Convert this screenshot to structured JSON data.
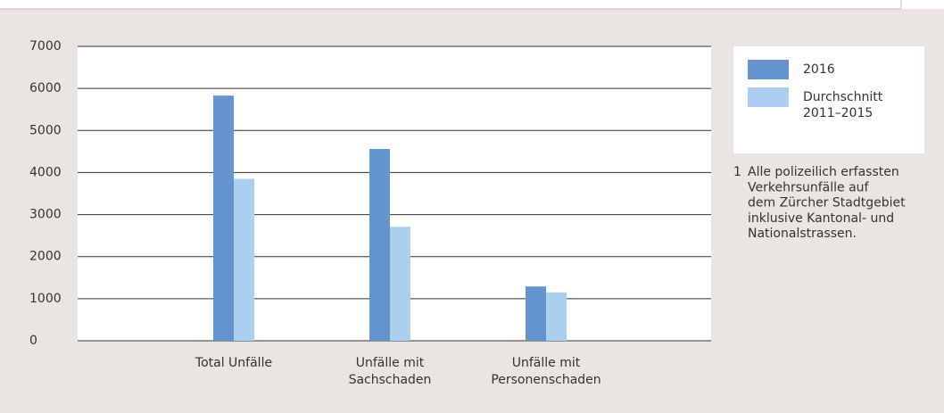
{
  "chart_data": {
    "type": "bar",
    "categories": [
      [
        "Total Unfälle"
      ],
      [
        "Unfälle mit",
        "Sachschaden"
      ],
      [
        "Unfälle mit",
        "Personenschaden"
      ]
    ],
    "series": [
      {
        "name": [
          "2016"
        ],
        "color": "#6494cd",
        "values": [
          5830,
          4560,
          1290
        ]
      },
      {
        "name": [
          "Durchschnitt",
          "2011–2015"
        ],
        "color": "#abcfee",
        "values": [
          3850,
          2710,
          1150
        ]
      }
    ],
    "ylim": [
      0,
      7000
    ],
    "yticks": [
      0,
      1000,
      2000,
      3000,
      4000,
      5000,
      6000,
      7000
    ],
    "grid": true,
    "footnote": {
      "marker": "1",
      "lines": [
        "Alle polizeilich erfassten",
        "Verkehrsunfälle auf",
        "dem Zürcher Stadtgebiet",
        "inklusive Kantonal- und",
        "Nationalstrassen."
      ]
    }
  }
}
